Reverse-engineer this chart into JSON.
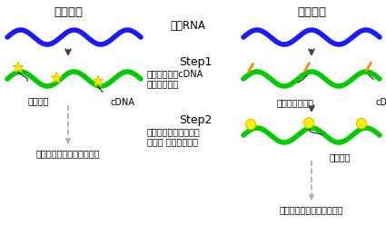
{
  "title_left": "直接標識",
  "title_right": "間接標識",
  "center_label": "鋳型RNA",
  "step1_title": "Step1",
  "step1_desc": "逆転写酵素でcDNA\nを合成します",
  "step2_title": "Step2",
  "step2_desc": "アミノアリル基に蛍光\n物質を 反応させます",
  "label_left_fluor": "蛍光物質",
  "label_left_cdna": "cDNA",
  "label_right_amino": "アミノアリル基",
  "label_right_cdna": "cDNA",
  "label_right_fluor2": "蛍光物質",
  "bottom_left": "ハイブリダイゼーションへ",
  "bottom_right": "ハイブリダイゼーションへ",
  "bg_color": "#ffffff",
  "blue_color": "#1a1aff",
  "green_color": "#00cc00",
  "star_color": "#ffee00",
  "orange_color": "#ff8800",
  "yellow_circle_color": "#ffee00",
  "arrow_color": "#444444",
  "dash_color": "#aaaaaa",
  "text_color": "#000000",
  "lw_wave": 3.5
}
